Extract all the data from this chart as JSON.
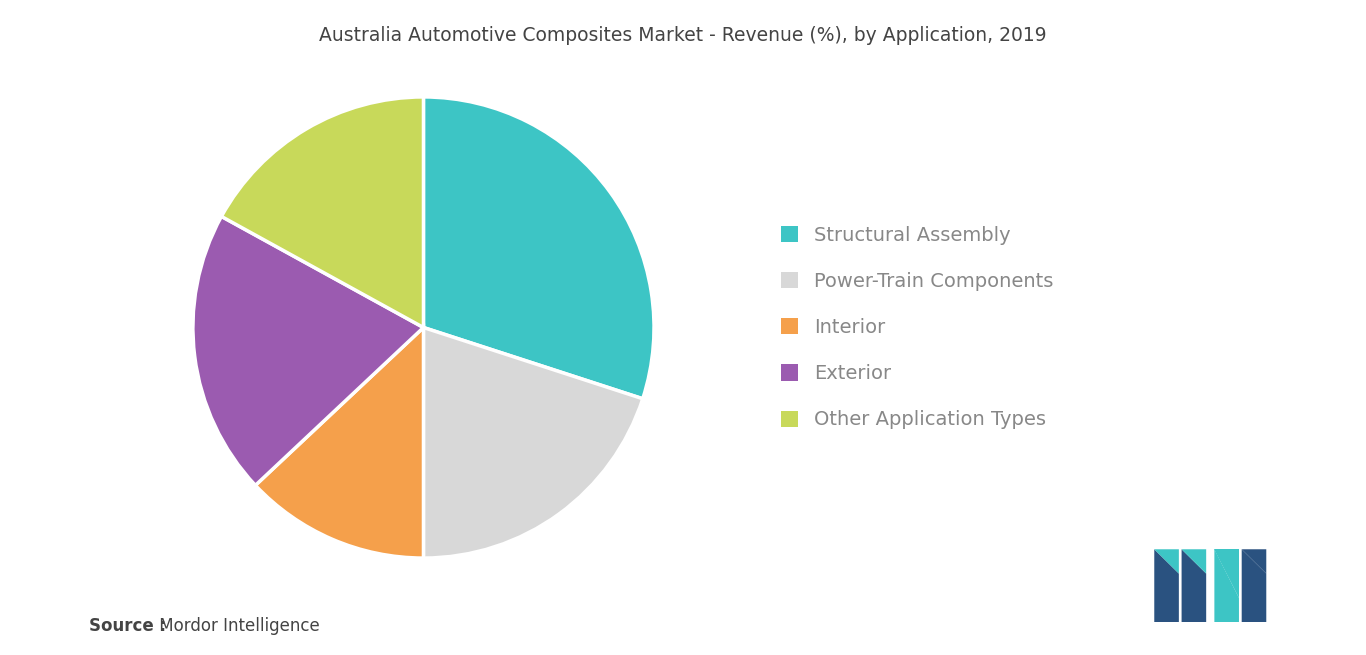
{
  "title": "Australia Automotive Composites Market - Revenue (%), by Application, 2019",
  "labels": [
    "Structural Assembly",
    "Power-Train Components",
    "Interior",
    "Exterior",
    "Other Application Types"
  ],
  "values": [
    30,
    20,
    13,
    20,
    17
  ],
  "colors": [
    "#3DC5C5",
    "#D8D8D8",
    "#F5A04B",
    "#9B5BB0",
    "#C8D95A"
  ],
  "startangle": 90,
  "source_bold": "Source :",
  "source_normal": " Mordor Intelligence",
  "background_color": "#FFFFFF",
  "title_fontsize": 13.5,
  "legend_fontsize": 14,
  "source_fontsize": 12,
  "legend_text_color": "#888888",
  "title_color": "#444444",
  "source_color": "#444444"
}
